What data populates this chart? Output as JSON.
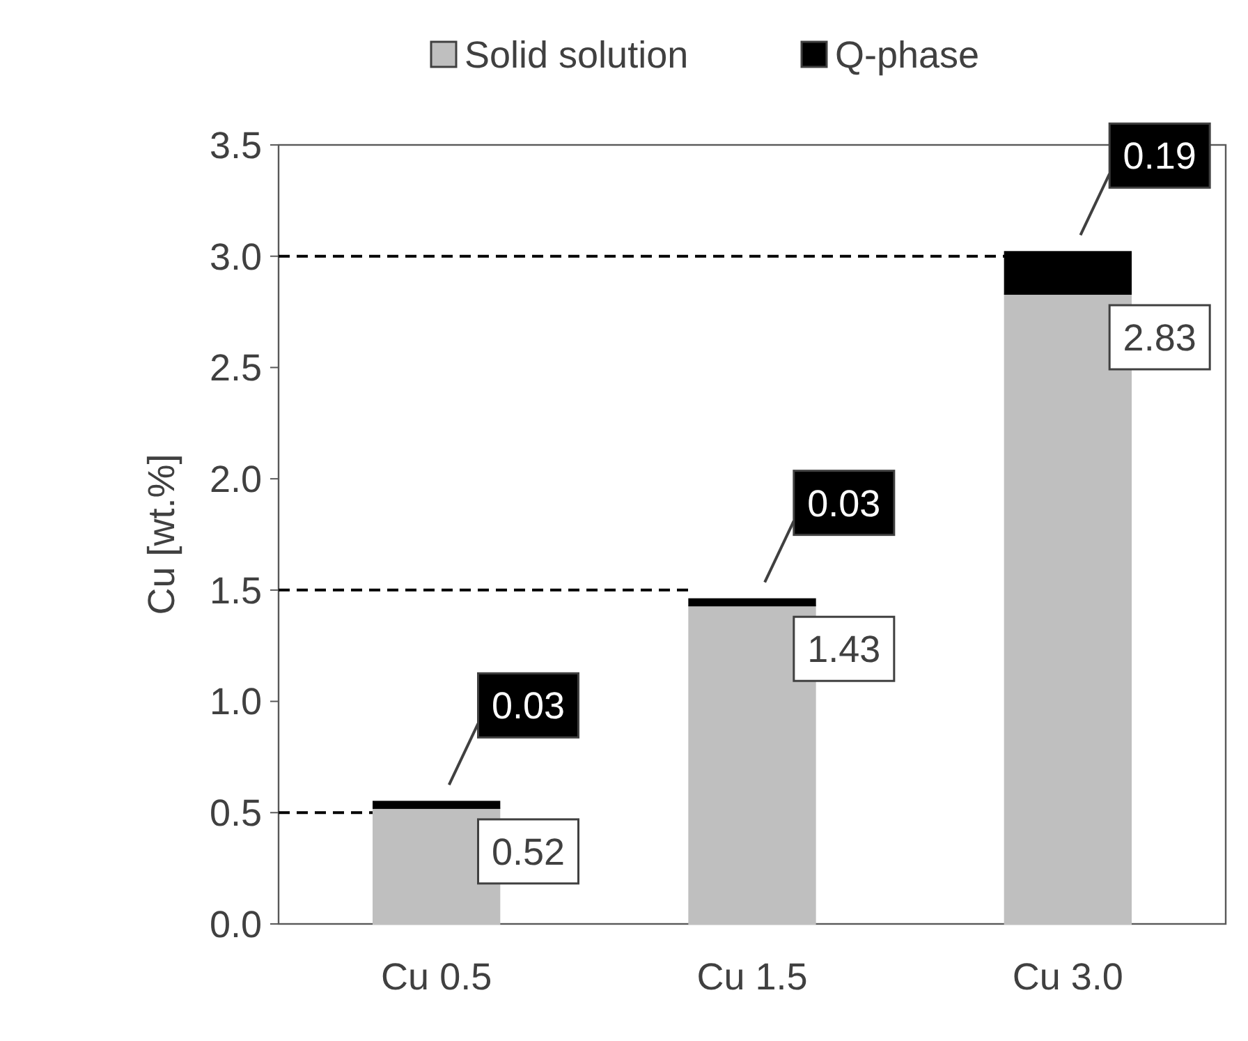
{
  "chart_data": {
    "type": "bar",
    "ylabel": "Cu [wt.%]",
    "categories": [
      "Cu 0.5",
      "Cu 1.5",
      "Cu 3.0"
    ],
    "stacked": true,
    "series": [
      {
        "name": "Solid solution",
        "color": "#bfbfbf",
        "values": [
          0.52,
          1.43,
          2.83
        ]
      },
      {
        "name": "Q-phase",
        "color": "#000000",
        "values": [
          0.03,
          0.03,
          0.19
        ]
      }
    ],
    "ylim": [
      0,
      3.5
    ],
    "yticks": [
      {
        "value": 0,
        "label": "0.0"
      },
      {
        "value": 0.5,
        "label": "0.5"
      },
      {
        "value": 1,
        "label": "1.0"
      },
      {
        "value": 1.5,
        "label": "1.5"
      },
      {
        "value": 2,
        "label": "2.0"
      },
      {
        "value": 2.5,
        "label": "2.5"
      },
      {
        "value": 3,
        "label": "3.0"
      },
      {
        "value": 3.5,
        "label": "3.5"
      }
    ],
    "ref_lines": [
      {
        "axis": "y",
        "value": 0.5,
        "line_style": "dashed",
        "color": "#000000"
      },
      {
        "axis": "y",
        "value": 1.5,
        "line_style": "dashed",
        "color": "#000000"
      },
      {
        "axis": "y",
        "value": 3.0,
        "line_style": "dashed",
        "color": "#000000"
      }
    ],
    "data_labels": true,
    "legend": "top",
    "grid": false
  }
}
